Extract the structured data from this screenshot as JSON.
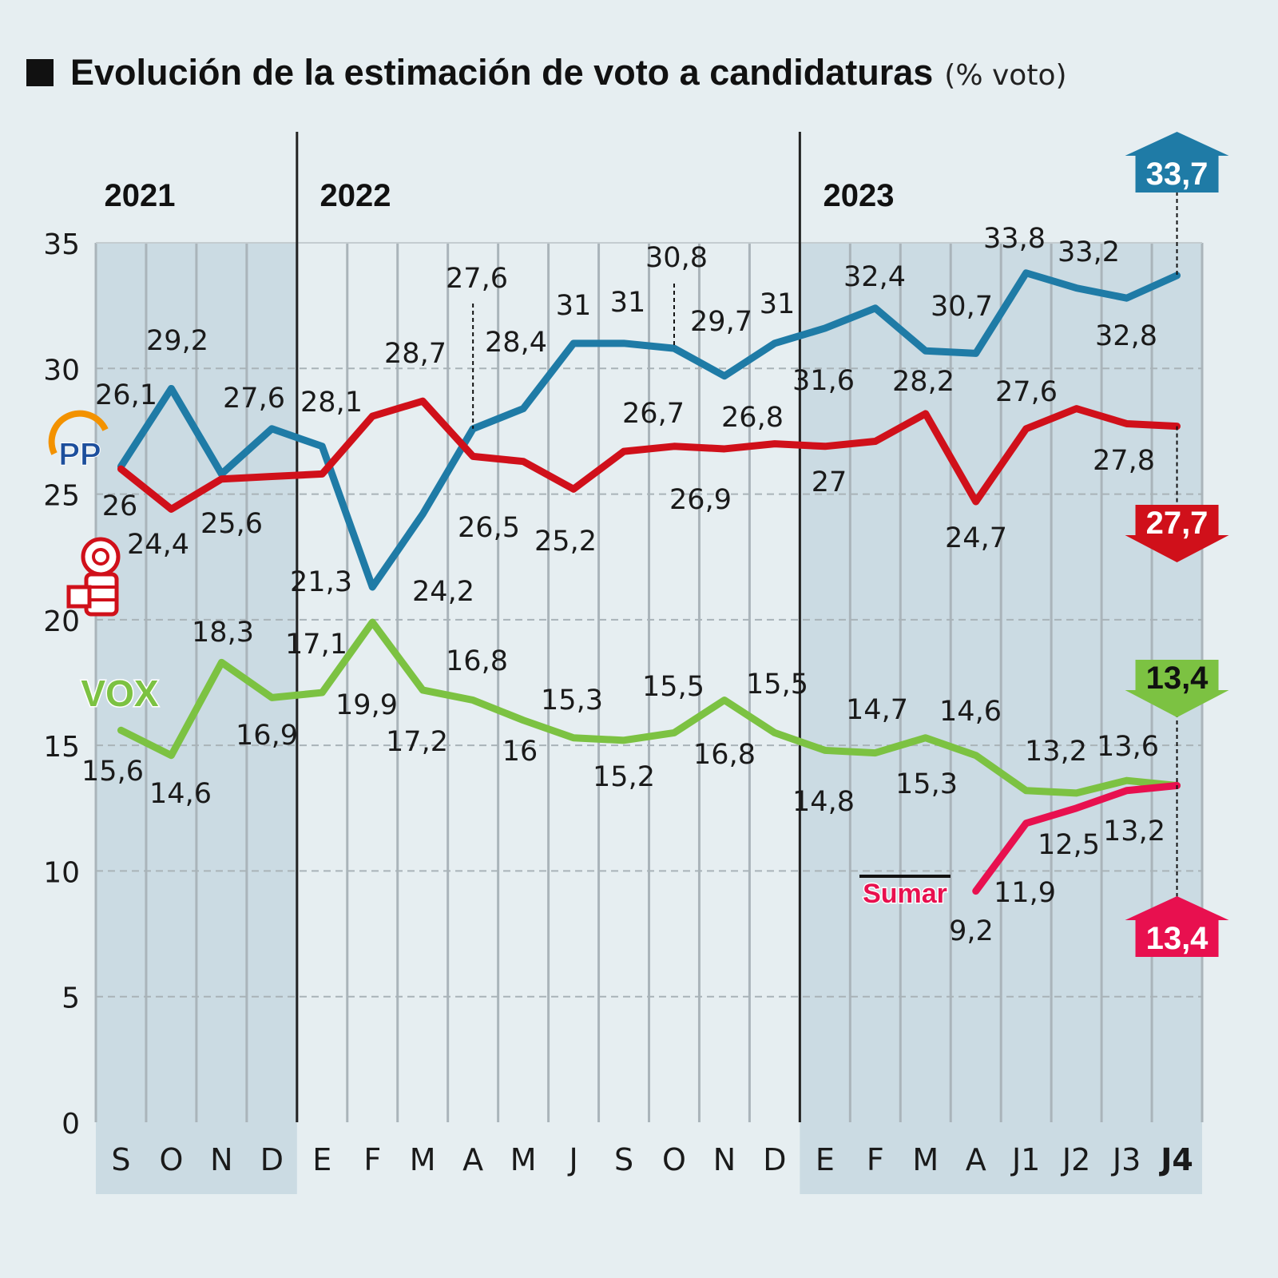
{
  "chart_data": {
    "type": "line",
    "title": "Evolución de la estimación de voto a candidaturas",
    "subtitle": "(% voto)",
    "years": [
      "2021",
      "2022",
      "2023"
    ],
    "categories": [
      "S",
      "O",
      "N",
      "D",
      "E",
      "F",
      "M",
      "A",
      "M",
      "J",
      "S",
      "O",
      "N",
      "D",
      "E",
      "F",
      "M",
      "A",
      "J1",
      "J2",
      "J3",
      "J4"
    ],
    "ylim": [
      0,
      35
    ],
    "yticks": [
      "0",
      "5",
      "10",
      "15",
      "20",
      "25",
      "30",
      "35"
    ],
    "grid": "horizontal dashed",
    "colors": {
      "pp": "#1f7ba6",
      "psoe": "#d0101a",
      "vox": "#7cc242",
      "sumar": "#e8104f"
    },
    "series": [
      {
        "name": "PP",
        "logo": "pp-logo",
        "color": "#1f7ba6",
        "values": [
          26.1,
          29.2,
          25.8,
          27.6,
          26.9,
          21.3,
          24.2,
          27.6,
          28.4,
          31,
          31,
          30.8,
          29.7,
          31,
          31.6,
          32.4,
          30.7,
          30.6,
          33.8,
          33.2,
          32.8,
          33.7
        ],
        "labels": [
          "26,1",
          "29,2",
          null,
          "27,6",
          null,
          "21,3",
          "24,2",
          "27,6",
          "28,4",
          "31",
          "31",
          "30,8",
          "29,7",
          "31",
          "31,6",
          "32,4",
          "30,7",
          null,
          "33,8",
          "33,2",
          "32,8",
          null
        ],
        "final": "33,7",
        "final_direction": "up"
      },
      {
        "name": "PSOE",
        "logo": "psoe-logo",
        "color": "#d0101a",
        "values": [
          26,
          24.4,
          25.6,
          25.7,
          25.8,
          28.1,
          28.7,
          26.5,
          26.3,
          25.2,
          26.7,
          26.9,
          26.8,
          27,
          26.9,
          27.1,
          28.2,
          24.7,
          27.6,
          28.4,
          27.8,
          27.7
        ],
        "labels": [
          "26",
          "24,4",
          "25,6",
          null,
          null,
          "28,1",
          "28,7",
          "26,5",
          null,
          "25,2",
          "26,7",
          "26,9",
          "26,8",
          null,
          "27",
          null,
          "28,2",
          "24,7",
          "27,6",
          null,
          "27,8",
          null
        ],
        "final": "27,7",
        "final_direction": "down"
      },
      {
        "name": "VOX",
        "logo": "vox-logo",
        "color": "#7cc242",
        "values": [
          15.6,
          14.6,
          18.3,
          16.9,
          17.1,
          19.9,
          17.2,
          16.8,
          16,
          15.3,
          15.2,
          15.5,
          16.8,
          15.5,
          14.8,
          14.7,
          15.3,
          14.6,
          13.2,
          13.1,
          13.6,
          13.4
        ],
        "labels": [
          "15,6",
          "14,6",
          "18,3",
          "16,9",
          "17,1",
          "19,9",
          "17,2",
          "16,8",
          "16",
          "15,3",
          "15,2",
          "15,5",
          "16,8",
          "15,5",
          "14,8",
          "14,7",
          "15,3",
          "14,6",
          "13,2",
          null,
          "13,6",
          null
        ],
        "final": "13,4",
        "final_direction": "down"
      },
      {
        "name": "Sumar",
        "logo": "sumar-logo",
        "color": "#e8104f",
        "values": [
          null,
          null,
          null,
          null,
          null,
          null,
          null,
          null,
          null,
          null,
          null,
          null,
          null,
          null,
          null,
          null,
          null,
          9.2,
          11.9,
          12.5,
          13.2,
          13.4
        ],
        "labels": [
          null,
          null,
          null,
          null,
          null,
          null,
          null,
          null,
          null,
          null,
          null,
          null,
          null,
          null,
          null,
          null,
          null,
          "9,2",
          "11,9",
          "12,5",
          "13,2",
          null
        ],
        "final": "13,4",
        "final_direction": "up"
      }
    ]
  }
}
